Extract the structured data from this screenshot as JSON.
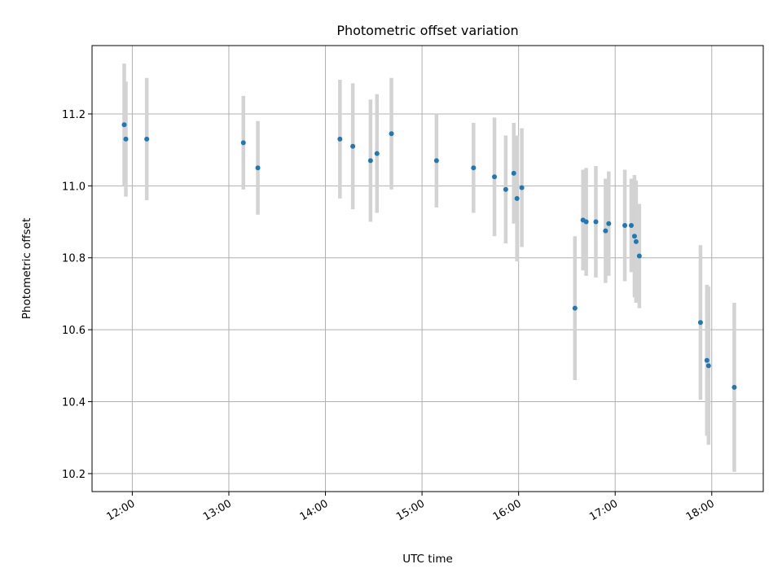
{
  "chart_data": {
    "type": "scatter",
    "title": "Photometric offset variation",
    "xlabel": "UTC time",
    "ylabel": "Photometric offset",
    "x_ticks": [
      "12:00",
      "13:00",
      "14:00",
      "15:00",
      "16:00",
      "17:00",
      "18:00"
    ],
    "y_ticks": [
      "10.2",
      "10.4",
      "10.6",
      "10.8",
      "11.0",
      "11.2"
    ],
    "xlim": [
      "11:35",
      "18:32"
    ],
    "ylim": [
      10.15,
      11.39
    ],
    "grid": true,
    "marker_color": "#1f77b4",
    "errorbar_color": "#d3d3d3",
    "points": [
      {
        "x": "11:55",
        "y": 11.17,
        "err": 0.17
      },
      {
        "x": "11:56",
        "y": 11.13,
        "err": 0.16
      },
      {
        "x": "12:09",
        "y": 11.13,
        "err": 0.17
      },
      {
        "x": "13:09",
        "y": 11.12,
        "err": 0.13
      },
      {
        "x": "13:18",
        "y": 11.05,
        "err": 0.13
      },
      {
        "x": "14:09",
        "y": 11.13,
        "err": 0.165
      },
      {
        "x": "14:17",
        "y": 11.11,
        "err": 0.175
      },
      {
        "x": "14:28",
        "y": 11.07,
        "err": 0.17
      },
      {
        "x": "14:32",
        "y": 11.09,
        "err": 0.165
      },
      {
        "x": "14:41",
        "y": 11.145,
        "err": 0.155
      },
      {
        "x": "15:09",
        "y": 11.07,
        "err": 0.13
      },
      {
        "x": "15:32",
        "y": 11.05,
        "err": 0.125
      },
      {
        "x": "15:45",
        "y": 11.025,
        "err": 0.165
      },
      {
        "x": "15:52",
        "y": 10.99,
        "err": 0.15
      },
      {
        "x": "15:57",
        "y": 11.035,
        "err": 0.14
      },
      {
        "x": "15:59",
        "y": 10.965,
        "err": 0.175
      },
      {
        "x": "16:02",
        "y": 10.995,
        "err": 0.165
      },
      {
        "x": "16:35",
        "y": 10.66,
        "err": 0.2
      },
      {
        "x": "16:40",
        "y": 10.905,
        "err": 0.14
      },
      {
        "x": "16:42",
        "y": 10.9,
        "err": 0.15
      },
      {
        "x": "16:48",
        "y": 10.9,
        "err": 0.155
      },
      {
        "x": "16:54",
        "y": 10.875,
        "err": 0.145
      },
      {
        "x": "16:56",
        "y": 10.895,
        "err": 0.145
      },
      {
        "x": "17:06",
        "y": 10.89,
        "err": 0.155
      },
      {
        "x": "17:10",
        "y": 10.89,
        "err": 0.13
      },
      {
        "x": "17:12",
        "y": 10.86,
        "err": 0.17
      },
      {
        "x": "17:13",
        "y": 10.845,
        "err": 0.17
      },
      {
        "x": "17:15",
        "y": 10.805,
        "err": 0.145
      },
      {
        "x": "17:53",
        "y": 10.62,
        "err": 0.215
      },
      {
        "x": "17:57",
        "y": 10.515,
        "err": 0.21
      },
      {
        "x": "17:58",
        "y": 10.5,
        "err": 0.22
      },
      {
        "x": "18:14",
        "y": 10.44,
        "err": 0.235
      }
    ]
  }
}
